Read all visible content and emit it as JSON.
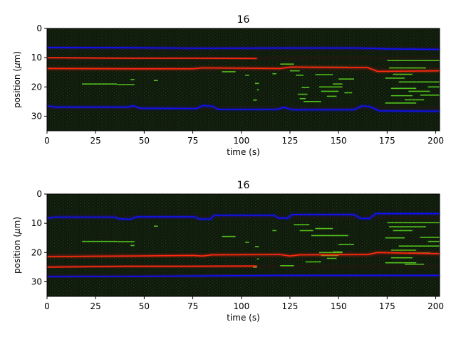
{
  "chart_data": [
    {
      "type": "heatmap",
      "title": "16",
      "xlabel": "time (s)",
      "ylabel_prefix": "position (",
      "ylabel_mu": "μ",
      "ylabel_suffix": "m)",
      "xlim": [
        0,
        202
      ],
      "ylim": [
        35,
        0
      ],
      "xticks": [
        0,
        25,
        50,
        75,
        100,
        125,
        150,
        175,
        200
      ],
      "yticks": [
        0,
        10,
        20,
        30
      ],
      "background": "#0f1a0c",
      "series": [
        {
          "color": "#1010ff",
          "points": [
            [
              0,
              6.5
            ],
            [
              45,
              6.6
            ],
            [
              80,
              6.8
            ],
            [
              120,
              6.7
            ],
            [
              160,
              6.7
            ],
            [
              175,
              7.0
            ],
            [
              202,
              7.2
            ]
          ]
        },
        {
          "color": "#ff2a10",
          "points": [
            [
              0,
              10
            ],
            [
              40,
              10.2
            ],
            [
              75,
              10.2
            ],
            [
              108,
              10.3
            ]
          ]
        },
        {
          "color": "#ff2a10",
          "points": [
            [
              0,
              13.7
            ],
            [
              45,
              13.8
            ],
            [
              75,
              13.8
            ],
            [
              80,
              13.5
            ],
            [
              120,
              13.7
            ],
            [
              125,
              13.2
            ],
            [
              165,
              13.4
            ],
            [
              170,
              14.7
            ],
            [
              202,
              14.5
            ]
          ]
        },
        {
          "color": "#1010ff",
          "points": [
            [
              0,
              26.5
            ],
            [
              4,
              26.9
            ],
            [
              42,
              26.9
            ],
            [
              44,
              26.4
            ],
            [
              48,
              27.3
            ],
            [
              77,
              27.4
            ],
            [
              80,
              26.4
            ],
            [
              85,
              26.6
            ],
            [
              88,
              27.7
            ],
            [
              118,
              27.7
            ],
            [
              122,
              27.0
            ],
            [
              126,
              27.8
            ],
            [
              158,
              27.8
            ],
            [
              162,
              26.5
            ],
            [
              166,
              26.7
            ],
            [
              171,
              28.2
            ],
            [
              202,
              28.3
            ]
          ]
        }
      ],
      "signal_segments": [
        [
          18,
          36,
          19.0
        ],
        [
          36,
          45,
          19.2
        ],
        [
          43,
          45,
          17.5
        ],
        [
          55,
          57,
          17.8
        ],
        [
          90,
          97,
          14.8
        ],
        [
          102,
          104,
          16.0
        ],
        [
          107,
          109,
          18.8
        ],
        [
          108,
          109,
          21.0
        ],
        [
          106,
          108,
          24.5
        ],
        [
          116,
          118,
          15.5
        ],
        [
          120,
          127,
          12.2
        ],
        [
          125,
          130,
          14.5
        ],
        [
          128,
          132,
          16.0
        ],
        [
          131,
          135,
          20.2
        ],
        [
          129,
          134,
          22.5
        ],
        [
          130,
          133,
          24.0
        ],
        [
          136,
          155,
          13.3
        ],
        [
          138,
          147,
          15.8
        ],
        [
          140,
          152,
          20.0
        ],
        [
          141,
          150,
          21.5
        ],
        [
          144,
          149,
          23.2
        ],
        [
          147,
          152,
          19.0
        ],
        [
          150,
          158,
          17.3
        ],
        [
          153,
          157,
          22.0
        ],
        [
          132,
          141,
          25.0
        ],
        [
          175,
          202,
          11.0
        ],
        [
          176,
          195,
          13.5
        ],
        [
          178,
          188,
          15.7
        ],
        [
          174,
          184,
          17.0
        ],
        [
          181,
          202,
          18.3
        ],
        [
          177,
          190,
          20.5
        ],
        [
          186,
          197,
          21.5
        ],
        [
          177,
          188,
          23.0
        ],
        [
          192,
          202,
          22.8
        ],
        [
          184,
          194,
          24.4
        ],
        [
          174,
          190,
          25.5
        ],
        [
          196,
          202,
          20.0
        ]
      ]
    },
    {
      "type": "heatmap",
      "title": "16",
      "xlabel": "time (s)",
      "ylabel_prefix": "position (",
      "ylabel_mu": "μ",
      "ylabel_suffix": "m)",
      "xlim": [
        0,
        202
      ],
      "ylim": [
        35,
        0
      ],
      "xticks": [
        0,
        25,
        50,
        75,
        100,
        125,
        150,
        175,
        200
      ],
      "yticks": [
        0,
        10,
        20,
        30
      ],
      "background": "#0f1a0c",
      "series": [
        {
          "color": "#1010ff",
          "points": [
            [
              0,
              8.3
            ],
            [
              4,
              7.9
            ],
            [
              35,
              7.9
            ],
            [
              37,
              8.5
            ],
            [
              43,
              8.6
            ],
            [
              46,
              7.8
            ],
            [
              76,
              7.8
            ],
            [
              78,
              8.5
            ],
            [
              84,
              8.6
            ],
            [
              86,
              7.3
            ],
            [
              117,
              7.3
            ],
            [
              119,
              8.2
            ],
            [
              124,
              8.3
            ],
            [
              126,
              7.0
            ],
            [
              158,
              7.0
            ],
            [
              161,
              8.3
            ],
            [
              166,
              8.4
            ],
            [
              169,
              6.7
            ],
            [
              202,
              6.7
            ]
          ]
        },
        {
          "color": "#ff2a10",
          "points": [
            [
              0,
              21.4
            ],
            [
              45,
              21.2
            ],
            [
              75,
              21.0
            ],
            [
              80,
              21.2
            ],
            [
              85,
              20.8
            ],
            [
              120,
              20.7
            ],
            [
              125,
              21.2
            ],
            [
              130,
              20.8
            ],
            [
              165,
              20.7
            ],
            [
              170,
              20.0
            ],
            [
              202,
              20.4
            ]
          ]
        },
        {
          "color": "#ff2a10",
          "points": [
            [
              0,
              25
            ],
            [
              40,
              24.7
            ],
            [
              75,
              24.7
            ],
            [
              108,
              24.6
            ]
          ]
        },
        {
          "color": "#1010ff",
          "points": [
            [
              0,
              28.3
            ],
            [
              40,
              28.2
            ],
            [
              80,
              28.0
            ],
            [
              120,
              27.8
            ],
            [
              160,
              27.8
            ],
            [
              202,
              27.8
            ]
          ]
        }
      ],
      "signal_segments": [
        [
          18,
          36,
          16.2
        ],
        [
          36,
          45,
          16.3
        ],
        [
          43,
          45,
          17.6
        ],
        [
          55,
          57,
          11.0
        ],
        [
          90,
          97,
          14.5
        ],
        [
          102,
          104,
          16.5
        ],
        [
          107,
          109,
          18.0
        ],
        [
          108,
          109,
          22.2
        ],
        [
          106,
          108,
          25.0
        ],
        [
          116,
          118,
          12.5
        ],
        [
          120,
          127,
          24.5
        ],
        [
          127,
          135,
          10.5
        ],
        [
          130,
          137,
          12.5
        ],
        [
          136,
          155,
          14.2
        ],
        [
          138,
          147,
          11.8
        ],
        [
          140,
          152,
          20.0
        ],
        [
          141,
          150,
          21.0
        ],
        [
          144,
          149,
          22.0
        ],
        [
          147,
          152,
          19.8
        ],
        [
          150,
          158,
          17.2
        ],
        [
          133,
          141,
          23.2
        ],
        [
          175,
          202,
          9.8
        ],
        [
          176,
          195,
          11.2
        ],
        [
          178,
          188,
          12.5
        ],
        [
          174,
          184,
          15.0
        ],
        [
          181,
          202,
          17.8
        ],
        [
          177,
          190,
          19.2
        ],
        [
          186,
          197,
          20.2
        ],
        [
          177,
          188,
          21.8
        ],
        [
          192,
          202,
          14.8
        ],
        [
          184,
          194,
          24.0
        ],
        [
          174,
          190,
          23.5
        ],
        [
          196,
          202,
          16.2
        ]
      ]
    }
  ]
}
